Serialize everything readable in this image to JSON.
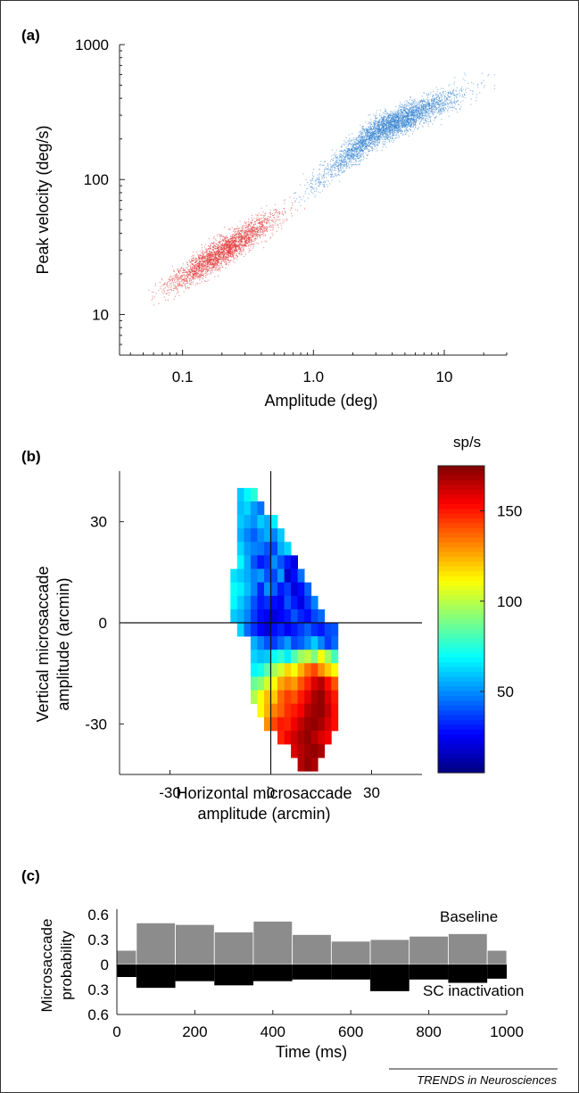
{
  "chart_data": [
    {
      "type": "scatter",
      "panel_label": "(a)",
      "xlabel": "Amplitude (deg)",
      "ylabel": "Peak velocity (deg/s)",
      "x_scale": "log",
      "y_scale": "log",
      "xlim": [
        0.033,
        30
      ],
      "ylim": [
        5,
        1000
      ],
      "x_ticks": [
        {
          "value": 0.1,
          "label": "0.1"
        },
        {
          "value": 1,
          "label": "1.0"
        },
        {
          "value": 10,
          "label": "10"
        }
      ],
      "y_ticks": [
        {
          "value": 10,
          "label": "10"
        },
        {
          "value": 100,
          "label": "100"
        },
        {
          "value": 1000,
          "label": "1000"
        }
      ],
      "series": [
        {
          "color": "#e03030",
          "x_range": [
            0.05,
            0.85
          ],
          "y_at_x": [
            [
              0.1,
              19
            ],
            [
              0.3,
              38
            ],
            [
              0.8,
              70
            ]
          ],
          "points_shown": 2600
        },
        {
          "color": "#2f7fd0",
          "x_range": [
            0.6,
            24
          ],
          "y_at_x": [
            [
              1,
              95
            ],
            [
              3,
              230
            ],
            [
              10,
              390
            ],
            [
              18,
              500
            ]
          ],
          "points_shown": 3600
        }
      ],
      "grid": false
    },
    {
      "type": "heatmap",
      "panel_label": "(b)",
      "xlabel": "Horizontal microsaccade amplitude (arcmin)",
      "ylabel": "Vertical microsaccade amplitude (arcmin)",
      "xlim": [
        -45,
        45
      ],
      "ylim": [
        -45,
        45
      ],
      "x_ticks": [
        -30,
        0,
        30
      ],
      "y_ticks": [
        30,
        0,
        -30
      ],
      "colorbar": {
        "label": "sp/s",
        "range": [
          5,
          175
        ],
        "ticks": [
          50,
          100,
          150
        ]
      },
      "cell_size": 2,
      "rows": [
        {
          "y": 38,
          "x0": -10,
          "values": [
            60,
            68,
            75
          ]
        },
        {
          "y": 34,
          "x0": -10,
          "values": [
            58,
            62,
            52,
            45
          ]
        },
        {
          "y": 30,
          "x0": -10,
          "values": [
            60,
            55,
            50,
            60,
            55,
            66
          ]
        },
        {
          "y": 26,
          "x0": -10,
          "values": [
            56,
            48,
            42,
            50,
            55,
            48,
            60
          ]
        },
        {
          "y": 22,
          "x0": -10,
          "values": [
            62,
            52,
            48,
            46,
            40,
            38,
            55,
            62
          ]
        },
        {
          "y": 18,
          "x0": -10,
          "values": [
            68,
            55,
            40,
            30,
            35,
            50,
            40,
            30,
            22
          ]
        },
        {
          "y": 14,
          "x0": -12,
          "values": [
            64,
            60,
            55,
            48,
            52,
            40,
            38,
            52,
            18,
            28,
            45
          ]
        },
        {
          "y": 10,
          "x0": -12,
          "values": [
            70,
            66,
            58,
            48,
            32,
            50,
            42,
            30,
            36,
            20,
            28,
            42
          ]
        },
        {
          "y": 6,
          "x0": -12,
          "values": [
            68,
            60,
            52,
            40,
            30,
            34,
            28,
            24,
            40,
            30,
            22,
            35,
            48
          ]
        },
        {
          "y": 2,
          "x0": -12,
          "values": [
            60,
            56,
            48,
            36,
            28,
            24,
            20,
            26,
            30,
            40,
            32,
            28,
            38,
            44
          ]
        },
        {
          "y": -2,
          "x0": -10,
          "values": [
            62,
            44,
            34,
            26,
            20,
            28,
            32,
            24,
            30,
            36,
            42,
            34,
            30,
            38,
            40
          ]
        },
        {
          "y": -6,
          "x0": -6,
          "values": [
            56,
            48,
            40,
            36,
            44,
            52,
            38,
            42,
            50,
            60,
            48,
            36,
            44
          ]
        },
        {
          "y": -10,
          "x0": -6,
          "values": [
            62,
            58,
            60,
            70,
            76,
            66,
            82,
            95,
            100,
            90,
            110,
            96,
            80
          ]
        },
        {
          "y": -14,
          "x0": -6,
          "values": [
            68,
            72,
            84,
            96,
            104,
            118,
            110,
            124,
            135,
            142,
            130,
            120,
            112
          ]
        },
        {
          "y": -18,
          "x0": -6,
          "values": [
            86,
            92,
            104,
            110,
            126,
            132,
            128,
            140,
            148,
            160,
            166,
            152,
            140
          ]
        },
        {
          "y": -22,
          "x0": -6,
          "values": [
            98,
            110,
            122,
            120,
            136,
            144,
            140,
            150,
            158,
            168,
            172,
            160,
            150
          ]
        },
        {
          "y": -26,
          "x0": -4,
          "values": [
            112,
            124,
            132,
            138,
            146,
            150,
            155,
            166,
            170,
            172,
            164,
            152
          ]
        },
        {
          "y": -30,
          "x0": -2,
          "values": [
            130,
            142,
            150,
            148,
            156,
            164,
            170,
            172,
            168,
            160,
            152
          ]
        },
        {
          "y": -34,
          "x0": 2,
          "values": [
            148,
            156,
            162,
            168,
            172,
            166,
            160,
            156
          ]
        },
        {
          "y": -38,
          "x0": 6,
          "values": [
            160,
            166,
            170,
            172,
            168
          ]
        },
        {
          "y": -42,
          "x0": 8,
          "values": [
            166,
            172,
            168
          ]
        }
      ]
    },
    {
      "type": "bar",
      "panel_label": "(c)",
      "xlabel": "Time (ms)",
      "ylabel": "Microsaccade probability",
      "xlim": [
        0,
        1000
      ],
      "ylim": [
        -0.6,
        0.6
      ],
      "x_ticks": [
        0,
        200,
        400,
        600,
        800,
        1000
      ],
      "y_tick_labels": [
        {
          "value": 0.6,
          "label": "0.6"
        },
        {
          "value": 0.3,
          "label": "0.3"
        },
        {
          "value": 0,
          "label": "0"
        },
        {
          "value": -0.3,
          "label": "0.3"
        },
        {
          "value": -0.6,
          "label": "0.6"
        }
      ],
      "bin_edges": [
        0,
        50,
        150,
        250,
        350,
        450,
        550,
        650,
        750,
        850,
        950,
        1000
      ],
      "series": [
        {
          "name": "Baseline",
          "color": "#8c8c8c",
          "values": [
            0.17,
            0.5,
            0.48,
            0.39,
            0.52,
            0.36,
            0.28,
            0.3,
            0.34,
            0.37,
            0.17
          ]
        },
        {
          "name": "SC inactivation",
          "color": "#000000",
          "values": [
            -0.15,
            -0.28,
            -0.2,
            -0.25,
            -0.2,
            -0.18,
            -0.18,
            -0.32,
            -0.18,
            -0.22,
            -0.17
          ]
        }
      ]
    }
  ],
  "footer": {
    "credit": "TRENDS in Neurosciences"
  }
}
